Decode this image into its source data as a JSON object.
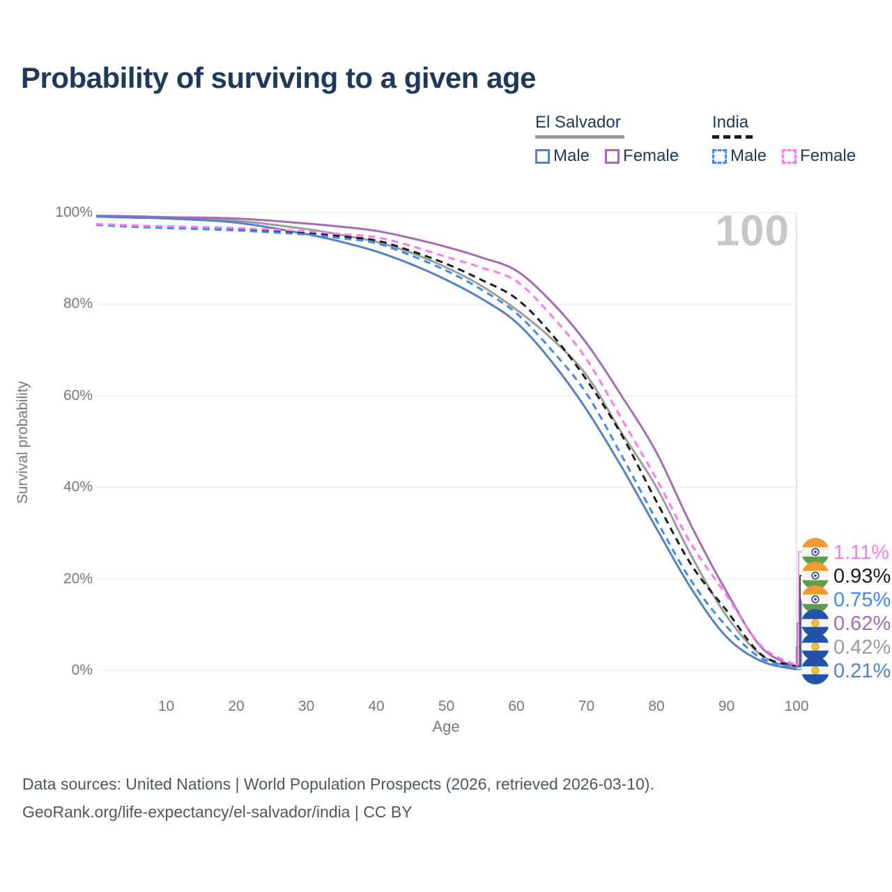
{
  "title": "Probability of surviving to a given age",
  "watermark": "100",
  "legend": {
    "groups": [
      {
        "label": "El Salvador",
        "line_style": "solid",
        "underline_color": "#9a9a9a",
        "items": [
          {
            "label": "Male",
            "color": "#5580c2",
            "dashed": false
          },
          {
            "label": "Female",
            "color": "#a76ab5",
            "dashed": false
          }
        ]
      },
      {
        "label": "India",
        "line_style": "dashed",
        "underline_color": "#1b1b1b",
        "items": [
          {
            "label": "Male",
            "color": "#3f87f5",
            "dashed": true
          },
          {
            "label": "Female",
            "color": "#ff79ee",
            "dashed": true
          }
        ]
      }
    ]
  },
  "axes": {
    "y_label": "Survival probability",
    "y_ticks": [
      {
        "label": "100%",
        "value": 100
      },
      {
        "label": "80%",
        "value": 80
      },
      {
        "label": "60%",
        "value": 60
      },
      {
        "label": "40%",
        "value": 40
      },
      {
        "label": "20%",
        "value": 20
      },
      {
        "label": "0%",
        "value": 0
      }
    ],
    "x_label": "Age",
    "x_ticks": [
      10,
      20,
      30,
      40,
      50,
      60,
      70,
      80,
      90,
      100
    ]
  },
  "chart_data": {
    "type": "line",
    "title": "Probability of surviving to a given age",
    "xlabel": "Age",
    "ylabel": "Survival probability",
    "xlim": [
      0,
      100
    ],
    "ylim": [
      0,
      100
    ],
    "grid": true,
    "legend_position": "top-right",
    "hover_age": 100,
    "x": [
      0,
      5,
      10,
      20,
      30,
      35,
      40,
      45,
      50,
      55,
      60,
      65,
      70,
      75,
      80,
      85,
      90,
      95,
      100
    ],
    "series": [
      {
        "name": "El Salvador Both sexes",
        "country": "El Salvador",
        "sex": "both",
        "color": "#9c9c9c",
        "dashed": false,
        "label_row": 4,
        "end_label": "0.42%",
        "values": [
          99.2,
          99.0,
          98.9,
          98.2,
          96.4,
          95.1,
          93.6,
          91.2,
          88.0,
          84.0,
          78.8,
          72.5,
          64.5,
          52.0,
          40.0,
          25.0,
          11.9,
          3.3,
          0.42
        ]
      },
      {
        "name": "El Salvador Female",
        "country": "El Salvador",
        "sex": "female",
        "color": "#a76ab5",
        "dashed": false,
        "label_row": 3,
        "end_label": "0.62%",
        "values": [
          99.3,
          99.2,
          99.0,
          98.7,
          97.6,
          96.9,
          96.0,
          94.4,
          92.5,
          90.2,
          87.3,
          80.5,
          71.5,
          60.0,
          47.6,
          31.5,
          17.2,
          5.0,
          0.62
        ]
      },
      {
        "name": "El Salvador Male",
        "country": "El Salvador",
        "sex": "male",
        "color": "#5580c2",
        "dashed": false,
        "label_row": 5,
        "end_label": "0.21%",
        "values": [
          99.1,
          98.9,
          98.7,
          97.8,
          95.3,
          93.6,
          91.5,
          88.7,
          85.3,
          81.2,
          76.0,
          67.5,
          57.0,
          44.5,
          31.0,
          17.8,
          7.3,
          2.0,
          0.21
        ]
      },
      {
        "name": "India Both sexes",
        "country": "India",
        "sex": "both",
        "color": "#1b1b1b",
        "dashed": true,
        "label_row": 1,
        "end_label": "0.93%",
        "values": [
          97.4,
          97.1,
          96.8,
          96.3,
          95.5,
          94.8,
          93.9,
          91.6,
          88.8,
          85.3,
          81.2,
          73.5,
          63.5,
          51.5,
          36.9,
          23.0,
          13.1,
          3.4,
          0.93
        ]
      },
      {
        "name": "India Male",
        "country": "India",
        "sex": "male",
        "color": "#3f87f5",
        "dashed": true,
        "label_row": 2,
        "end_label": "0.75%",
        "values": [
          97.3,
          96.9,
          96.6,
          96.1,
          95.2,
          94.4,
          93.3,
          90.6,
          87.3,
          83.2,
          78.0,
          70.0,
          60.5,
          47.0,
          32.8,
          19.5,
          9.6,
          2.6,
          0.75
        ]
      },
      {
        "name": "India Female",
        "country": "India",
        "sex": "female",
        "color": "#ff79ee",
        "dashed": true,
        "label_row": 0,
        "end_label": "1.11%",
        "values": [
          97.5,
          97.2,
          97.0,
          96.6,
          95.9,
          95.3,
          94.6,
          92.7,
          90.3,
          88.0,
          85.0,
          77.5,
          68.0,
          55.0,
          41.8,
          27.5,
          16.4,
          5.3,
          1.11
        ]
      }
    ]
  },
  "end_labels": [
    {
      "value": "1.11%",
      "country": "India",
      "color": "#ff79ee"
    },
    {
      "value": "0.93%",
      "country": "India",
      "color": "#1b1b1b"
    },
    {
      "value": "0.75%",
      "country": "India",
      "color": "#3f87f5"
    },
    {
      "value": "0.62%",
      "country": "El Salvador",
      "color": "#a76ab5"
    },
    {
      "value": "0.42%",
      "country": "El Salvador",
      "color": "#9c9c9c"
    },
    {
      "value": "0.21%",
      "country": "El Salvador",
      "color": "#5580c2"
    }
  ],
  "footer": {
    "line1": "Data sources: United Nations | World Population Prospects (2026, retrieved 2026-03-10).",
    "line2": "GeoRank.org/life-expectancy/el-salvador/india | CC BY"
  }
}
